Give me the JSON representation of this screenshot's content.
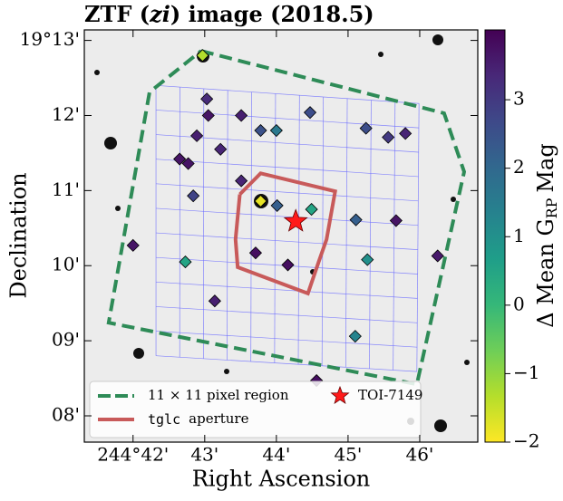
{
  "chart_data": {
    "type": "scatter",
    "title_parts": [
      "ZTF (",
      "zi",
      ") image (2018.5)"
    ],
    "x_label": "Right Ascension",
    "y_label": "Declination",
    "xlim": [
      41.32,
      46.81
    ],
    "ylim": [
      7.65,
      13.14
    ],
    "xticks": [
      {
        "value": 42,
        "label": "244°42'"
      },
      {
        "value": 43,
        "label": "43'"
      },
      {
        "value": 44,
        "label": "44'"
      },
      {
        "value": 45,
        "label": "45'"
      },
      {
        "value": 46,
        "label": "46'"
      }
    ],
    "yticks": [
      {
        "value": 13,
        "label": "19°13'"
      },
      {
        "value": 12,
        "label": "12'"
      },
      {
        "value": 11,
        "label": "11'"
      },
      {
        "value": 10,
        "label": "10'"
      },
      {
        "value": 9,
        "label": "09'"
      },
      {
        "value": 8,
        "label": "08'"
      }
    ],
    "points": {
      "x": [
        42.97,
        43.03,
        43.05,
        43.51,
        44.47,
        42.89,
        43.78,
        44.0,
        45.25,
        45.8,
        45.56,
        43.22,
        42.65,
        42.77,
        43.51,
        42.84,
        43.78,
        44.01,
        44.49,
        45.11,
        45.67,
        42.0,
        43.71,
        42.73,
        44.16,
        45.27,
        46.25,
        43.14,
        45.1,
        44.56
      ],
      "y": [
        12.8,
        12.22,
        12.0,
        12.0,
        12.04,
        11.73,
        11.8,
        11.8,
        11.83,
        11.76,
        11.71,
        11.55,
        11.42,
        11.36,
        11.13,
        10.93,
        10.86,
        10.8,
        10.75,
        10.61,
        10.6,
        10.27,
        10.17,
        10.05,
        10.01,
        10.08,
        10.13,
        9.53,
        9.06,
        8.47
      ],
      "values": [
        -1.3,
        3.3,
        3.7,
        3.5,
        2.6,
        3.5,
        2.5,
        1.6,
        2.6,
        3.4,
        3.0,
        3.4,
        3.7,
        3.7,
        3.4,
        2.8,
        -1.8,
        2.2,
        0.5,
        2.2,
        3.7,
        3.7,
        3.8,
        0.5,
        3.8,
        1.0,
        3.6,
        3.5,
        1.3,
        3.8
      ]
    },
    "colorbar": {
      "label_parts": [
        "Δ Mean G",
        "RP",
        "Mag"
      ],
      "lim": [
        -2,
        4.02
      ],
      "ticks": [
        {
          "value": -2,
          "label": "−2"
        },
        {
          "value": -1,
          "label": "−1"
        },
        0,
        1,
        2,
        3
      ],
      "cmap": "viridis_r"
    },
    "pixel_grid": {
      "color": "#6a6aff",
      "x": [
        42.32,
        45.99,
        45.96,
        42.32
      ],
      "y": [
        12.4,
        12.16,
        8.59,
        8.8
      ]
    },
    "series": [
      {
        "name": "11 × 11 pixel region",
        "color": "#2e8b57",
        "style": "dashed",
        "x": [
          42.95,
          46.34,
          46.62,
          45.96,
          41.66,
          42.23,
          42.95
        ],
        "y": [
          12.86,
          12.03,
          11.25,
          8.42,
          9.24,
          12.31,
          12.86
        ]
      },
      {
        "name": "tglc aperture",
        "color": "#c85a5a",
        "style": "solid",
        "x": [
          43.49,
          43.78,
          44.82,
          44.7,
          44.59,
          44.44,
          43.46,
          43.43,
          43.49
        ],
        "y": [
          10.95,
          11.23,
          10.99,
          10.35,
          10.05,
          9.63,
          9.98,
          10.35,
          10.95
        ]
      },
      {
        "name": "TOI-7149",
        "color": "#ff1a1a",
        "style": "star",
        "x": [
          44.27
        ],
        "y": [
          10.59
        ]
      }
    ]
  }
}
